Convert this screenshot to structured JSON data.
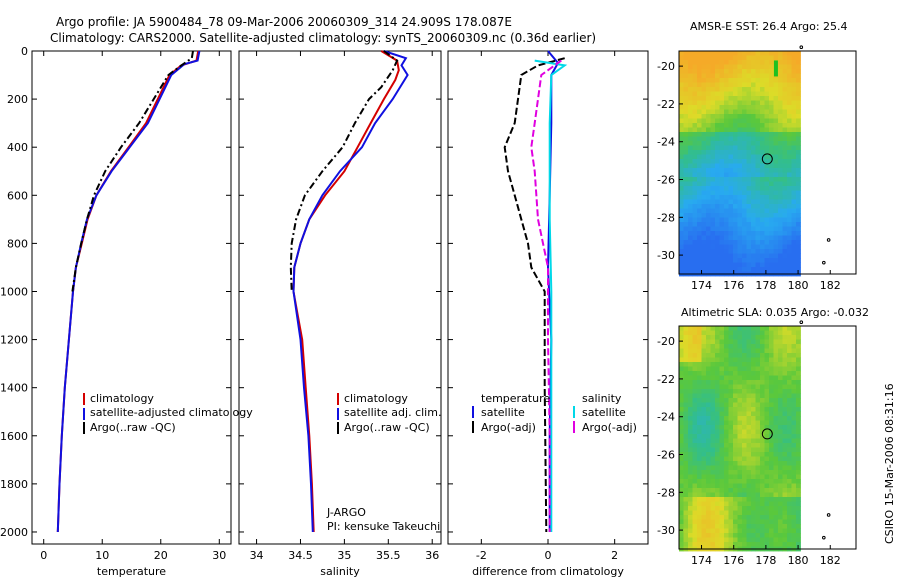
{
  "header": {
    "line1": "Argo profile: JA 5900484_78 09-Mar-2006 20060309_314 24.909S 178.087E",
    "line2": "Climatology: CARS2000. Satellite-adjusted climatology: synTS_20060309.nc (0.36d earlier)"
  },
  "colors": {
    "clim": "#d40000",
    "sat": "#1010e0",
    "argo": "#000000",
    "sal_sat": "#00d8e8",
    "sal_argo": "#e000e0"
  },
  "chart_data": [
    {
      "id": "temperature",
      "type": "line",
      "xlabel": "temperature",
      "ylabel": "",
      "xlim": [
        -2,
        32
      ],
      "ylim": [
        2050,
        0
      ],
      "xticks": [
        "0",
        "10",
        "20",
        "30"
      ],
      "xtick_values": [
        0,
        10,
        20,
        30
      ],
      "yticks": [
        "0",
        "200",
        "400",
        "600",
        "800",
        "1000",
        "1200",
        "1400",
        "1600",
        "1800",
        "2000"
      ],
      "series": [
        {
          "name": "climatology",
          "color": "#d40000",
          "dash": "",
          "points": [
            [
              26.4,
              0
            ],
            [
              26.1,
              40
            ],
            [
              23.5,
              60
            ],
            [
              21.5,
              100
            ],
            [
              19.5,
              200
            ],
            [
              17.5,
              300
            ],
            [
              14.5,
              400
            ],
            [
              11.5,
              500
            ],
            [
              9,
              600
            ],
            [
              7.5,
              700
            ],
            [
              6.5,
              800
            ],
            [
              5.5,
              900
            ],
            [
              5,
              1000
            ],
            [
              4.3,
              1200
            ],
            [
              3.6,
              1400
            ],
            [
              3.1,
              1600
            ],
            [
              2.7,
              1800
            ],
            [
              2.4,
              2000
            ]
          ]
        },
        {
          "name": "satellite-adjusted climatology",
          "color": "#1010e0",
          "dash": "",
          "points": [
            [
              26.6,
              0
            ],
            [
              26.3,
              40
            ],
            [
              24,
              55
            ],
            [
              21.8,
              100
            ],
            [
              19.8,
              200
            ],
            [
              17.8,
              300
            ],
            [
              14.7,
              400
            ],
            [
              11.6,
              500
            ],
            [
              9,
              600
            ],
            [
              7.4,
              700
            ],
            [
              6.4,
              800
            ],
            [
              5.5,
              900
            ],
            [
              5,
              1000
            ],
            [
              4.3,
              1200
            ],
            [
              3.6,
              1400
            ],
            [
              3.1,
              1600
            ],
            [
              2.7,
              1800
            ],
            [
              2.4,
              2000
            ]
          ]
        },
        {
          "name": "Argo(..raw -QC)",
          "color": "#000000",
          "dash": "7,3,2,3",
          "points": [
            [
              25.5,
              0
            ],
            [
              25.3,
              30
            ],
            [
              23.5,
              60
            ],
            [
              21.3,
              100
            ],
            [
              18.8,
              200
            ],
            [
              16.3,
              300
            ],
            [
              13.2,
              400
            ],
            [
              10.5,
              500
            ],
            [
              8.6,
              600
            ],
            [
              7.4,
              700
            ],
            [
              6.4,
              800
            ],
            [
              5.5,
              900
            ],
            [
              4.9,
              1000
            ]
          ]
        }
      ]
    },
    {
      "id": "salinity",
      "type": "line",
      "xlabel": "salinity",
      "ylabel": "",
      "xlim": [
        33.8,
        36.1
      ],
      "ylim": [
        2050,
        0
      ],
      "xticks": [
        "34",
        "34.5",
        "35",
        "35.5",
        "36"
      ],
      "xtick_values": [
        34,
        34.5,
        35,
        35.5,
        36
      ],
      "series": [
        {
          "name": "climatology",
          "color": "#d40000",
          "dash": "",
          "points": [
            [
              35.42,
              0
            ],
            [
              35.6,
              40
            ],
            [
              35.62,
              80
            ],
            [
              35.58,
              120
            ],
            [
              35.45,
              200
            ],
            [
              35.3,
              300
            ],
            [
              35.15,
              400
            ],
            [
              35.0,
              500
            ],
            [
              34.78,
              600
            ],
            [
              34.6,
              700
            ],
            [
              34.5,
              800
            ],
            [
              34.43,
              900
            ],
            [
              34.42,
              1000
            ],
            [
              34.47,
              1100
            ],
            [
              34.52,
              1200
            ],
            [
              34.56,
              1400
            ],
            [
              34.6,
              1600
            ],
            [
              34.63,
              1800
            ],
            [
              34.65,
              2000
            ]
          ]
        },
        {
          "name": "satellite adj. clim.",
          "color": "#1010e0",
          "dash": "",
          "points": [
            [
              35.45,
              0
            ],
            [
              35.7,
              30
            ],
            [
              35.65,
              60
            ],
            [
              35.72,
              100
            ],
            [
              35.55,
              200
            ],
            [
              35.35,
              300
            ],
            [
              35.2,
              400
            ],
            [
              34.95,
              500
            ],
            [
              34.75,
              600
            ],
            [
              34.6,
              700
            ],
            [
              34.5,
              800
            ],
            [
              34.43,
              900
            ],
            [
              34.42,
              1000
            ],
            [
              34.46,
              1100
            ],
            [
              34.5,
              1200
            ],
            [
              34.54,
              1400
            ],
            [
              34.59,
              1600
            ],
            [
              34.62,
              1800
            ],
            [
              34.64,
              2000
            ]
          ]
        },
        {
          "name": "Argo(..raw -QC)",
          "color": "#000000",
          "dash": "7,3,2,3",
          "points": [
            [
              35.45,
              0
            ],
            [
              35.6,
              40
            ],
            [
              35.55,
              80
            ],
            [
              35.42,
              150
            ],
            [
              35.28,
              200
            ],
            [
              35.12,
              300
            ],
            [
              34.98,
              400
            ],
            [
              34.75,
              500
            ],
            [
              34.55,
              600
            ],
            [
              34.45,
              700
            ],
            [
              34.4,
              800
            ],
            [
              34.39,
              900
            ],
            [
              34.4,
              1000
            ]
          ]
        }
      ]
    },
    {
      "id": "difference",
      "type": "line",
      "xlabel": "difference from climatology",
      "ylabel": "",
      "xlim": [
        -3,
        3
      ],
      "ylim": [
        2050,
        0
      ],
      "xticks": [
        "-2",
        "0",
        "2"
      ],
      "xtick_values": [
        -2,
        0,
        2
      ],
      "series": [
        {
          "name": "temperature satellite",
          "color": "#1010e0",
          "dash": "",
          "points": [
            [
              0,
              0
            ],
            [
              0.3,
              50
            ],
            [
              0.1,
              100
            ],
            [
              0.1,
              300
            ],
            [
              0.05,
              600
            ],
            [
              0,
              900
            ],
            [
              0.1,
              1200
            ],
            [
              0.05,
              1600
            ],
            [
              0.05,
              2000
            ]
          ]
        },
        {
          "name": "temperature Argo(-adj)",
          "color": "#000000",
          "dash": "7,3",
          "points": [
            [
              0.5,
              30
            ],
            [
              -0.3,
              60
            ],
            [
              -0.8,
              100
            ],
            [
              -0.9,
              200
            ],
            [
              -1.0,
              300
            ],
            [
              -1.3,
              400
            ],
            [
              -1.2,
              500
            ],
            [
              -1.0,
              600
            ],
            [
              -0.8,
              700
            ],
            [
              -0.6,
              800
            ],
            [
              -0.5,
              900
            ],
            [
              -0.1,
              1000
            ],
            [
              -0.1,
              1400
            ],
            [
              -0.05,
              2000
            ]
          ]
        },
        {
          "name": "salinity satellite",
          "color": "#00d8e8",
          "dash": "",
          "points": [
            [
              -0.4,
              40
            ],
            [
              0.5,
              60
            ],
            [
              0.1,
              100
            ],
            [
              0.05,
              300
            ],
            [
              0.05,
              700
            ],
            [
              0.1,
              1000
            ],
            [
              0.1,
              1500
            ],
            [
              0.1,
              2000
            ]
          ]
        },
        {
          "name": "salinity Argo(-adj)",
          "color": "#e000e0",
          "dash": "7,3",
          "points": [
            [
              0.4,
              40
            ],
            [
              -0.2,
              100
            ],
            [
              -0.4,
              300
            ],
            [
              -0.5,
              400
            ],
            [
              -0.4,
              500
            ],
            [
              -0.3,
              700
            ],
            [
              0,
              900
            ],
            [
              0,
              1200
            ],
            [
              0.05,
              1600
            ],
            [
              0.05,
              2000
            ]
          ]
        }
      ]
    },
    {
      "id": "sst-map",
      "type": "heatmap",
      "title": "AMSR-E SST: 26.4 Argo: 25.4",
      "xticks": [
        "174",
        "176",
        "178",
        "180",
        "182"
      ],
      "yticks": [
        "-20",
        "-22",
        "-24",
        "-26",
        "-28",
        "-30"
      ]
    },
    {
      "id": "sla-map",
      "type": "heatmap",
      "title": "Altimetric SLA: 0.035 Argo: -0.032",
      "xticks": [
        "174",
        "176",
        "178",
        "180",
        "182"
      ],
      "yticks": [
        "-20",
        "-22",
        "-24",
        "-26",
        "-28",
        "-30"
      ]
    }
  ],
  "legends": {
    "temperature": [
      "climatology",
      "satellite-adjusted climatology",
      "Argo(..raw -QC)"
    ],
    "salinity": [
      "climatology",
      "satellite adj. clim.",
      "Argo(..raw -QC)"
    ],
    "difference": {
      "temp_title": "temperature",
      "sal_title": "salinity",
      "temp_items": [
        "satellite",
        "Argo(-adj)"
      ],
      "sal_items": [
        "satellite",
        "Argo(-adj)"
      ]
    }
  },
  "credit": {
    "program": "J-ARGO",
    "pi": "PI: kensuke Takeuchi"
  },
  "side_label": "CSIRO 15-Mar-2006 08:31:16"
}
